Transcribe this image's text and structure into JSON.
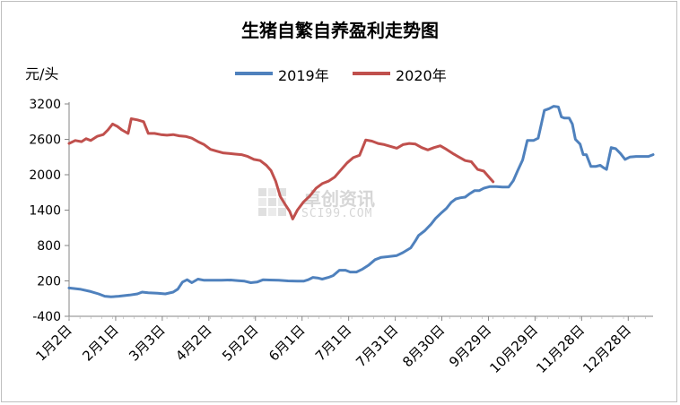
{
  "chart_data": {
    "type": "line",
    "title": "生猪自繁自养盈利走势图",
    "ylabel": "元/头",
    "xlabel": "",
    "ylim": [
      -400,
      3200
    ],
    "yticks": [
      -400,
      200,
      800,
      1400,
      2000,
      2600,
      3200
    ],
    "x_tick_labels": [
      "1月2日",
      "2月1日",
      "3月3日",
      "4月2日",
      "5月2日",
      "6月1日",
      "7月1日",
      "7月31日",
      "8月30日",
      "9月29日",
      "10月29日",
      "11月28日",
      "12月28日"
    ],
    "x_range_days": [
      1,
      363
    ],
    "legend_position": "top",
    "grid": false,
    "watermark": {
      "main": "卓创资讯",
      "sub": "SCI99.COM"
    },
    "series": [
      {
        "name": "2019年",
        "color": "#4f81bd",
        "points": [
          [
            1,
            80
          ],
          [
            8,
            60
          ],
          [
            15,
            20
          ],
          [
            20,
            -20
          ],
          [
            24,
            -60
          ],
          [
            28,
            -70
          ],
          [
            33,
            -60
          ],
          [
            40,
            -40
          ],
          [
            45,
            -20
          ],
          [
            48,
            10
          ],
          [
            52,
            0
          ],
          [
            58,
            -10
          ],
          [
            63,
            -20
          ],
          [
            68,
            10
          ],
          [
            71,
            60
          ],
          [
            74,
            180
          ],
          [
            77,
            220
          ],
          [
            80,
            170
          ],
          [
            84,
            230
          ],
          [
            88,
            210
          ],
          [
            93,
            210
          ],
          [
            99,
            210
          ],
          [
            105,
            215
          ],
          [
            110,
            205
          ],
          [
            114,
            195
          ],
          [
            118,
            170
          ],
          [
            122,
            180
          ],
          [
            126,
            220
          ],
          [
            130,
            215
          ],
          [
            136,
            210
          ],
          [
            142,
            200
          ],
          [
            148,
            195
          ],
          [
            152,
            195
          ],
          [
            155,
            220
          ],
          [
            158,
            260
          ],
          [
            161,
            250
          ],
          [
            164,
            230
          ],
          [
            168,
            260
          ],
          [
            171,
            290
          ],
          [
            175,
            380
          ],
          [
            179,
            380
          ],
          [
            182,
            350
          ],
          [
            186,
            350
          ],
          [
            190,
            400
          ],
          [
            194,
            470
          ],
          [
            198,
            560
          ],
          [
            202,
            600
          ],
          [
            206,
            610
          ],
          [
            212,
            630
          ],
          [
            216,
            680
          ],
          [
            221,
            760
          ],
          [
            224,
            880
          ],
          [
            226,
            970
          ],
          [
            230,
            1050
          ],
          [
            234,
            1160
          ],
          [
            237,
            1260
          ],
          [
            241,
            1360
          ],
          [
            244,
            1430
          ],
          [
            247,
            1530
          ],
          [
            250,
            1590
          ],
          [
            253,
            1610
          ],
          [
            256,
            1620
          ],
          [
            259,
            1680
          ],
          [
            262,
            1730
          ],
          [
            265,
            1730
          ],
          [
            268,
            1770
          ],
          [
            272,
            1800
          ],
          [
            276,
            1800
          ],
          [
            280,
            1790
          ],
          [
            284,
            1790
          ],
          [
            287,
            1900
          ],
          [
            290,
            2080
          ],
          [
            293,
            2250
          ],
          [
            296,
            2580
          ],
          [
            300,
            2580
          ],
          [
            303,
            2620
          ],
          [
            305,
            2850
          ],
          [
            307,
            3090
          ],
          [
            310,
            3120
          ],
          [
            313,
            3160
          ],
          [
            316,
            3150
          ],
          [
            318,
            2980
          ],
          [
            320,
            2960
          ],
          [
            323,
            2960
          ],
          [
            325,
            2860
          ],
          [
            327,
            2600
          ],
          [
            330,
            2520
          ],
          [
            332,
            2340
          ],
          [
            334,
            2340
          ],
          [
            337,
            2140
          ],
          [
            340,
            2140
          ],
          [
            343,
            2160
          ],
          [
            345,
            2120
          ],
          [
            347,
            2090
          ],
          [
            350,
            2460
          ],
          [
            353,
            2440
          ],
          [
            356,
            2360
          ],
          [
            359,
            2260
          ],
          [
            362,
            2300
          ],
          [
            366,
            2310
          ],
          [
            370,
            2310
          ],
          [
            374,
            2310
          ],
          [
            377,
            2340
          ]
        ]
      },
      {
        "name": "2020年",
        "color": "#c0504d",
        "points": [
          [
            1,
            2530
          ],
          [
            5,
            2580
          ],
          [
            9,
            2560
          ],
          [
            12,
            2610
          ],
          [
            15,
            2580
          ],
          [
            19,
            2650
          ],
          [
            23,
            2680
          ],
          [
            26,
            2760
          ],
          [
            29,
            2860
          ],
          [
            32,
            2820
          ],
          [
            35,
            2760
          ],
          [
            39,
            2700
          ],
          [
            41,
            2950
          ],
          [
            45,
            2930
          ],
          [
            49,
            2900
          ],
          [
            52,
            2700
          ],
          [
            56,
            2700
          ],
          [
            60,
            2680
          ],
          [
            64,
            2670
          ],
          [
            68,
            2680
          ],
          [
            72,
            2660
          ],
          [
            76,
            2650
          ],
          [
            80,
            2620
          ],
          [
            84,
            2560
          ],
          [
            88,
            2510
          ],
          [
            92,
            2430
          ],
          [
            96,
            2400
          ],
          [
            100,
            2370
          ],
          [
            104,
            2360
          ],
          [
            108,
            2350
          ],
          [
            112,
            2340
          ],
          [
            116,
            2310
          ],
          [
            120,
            2260
          ],
          [
            124,
            2240
          ],
          [
            128,
            2160
          ],
          [
            131,
            2070
          ],
          [
            134,
            1890
          ],
          [
            137,
            1630
          ],
          [
            140,
            1500
          ],
          [
            143,
            1380
          ],
          [
            145,
            1250
          ],
          [
            148,
            1400
          ],
          [
            152,
            1540
          ],
          [
            156,
            1640
          ],
          [
            160,
            1770
          ],
          [
            164,
            1850
          ],
          [
            168,
            1890
          ],
          [
            172,
            1960
          ],
          [
            176,
            2080
          ],
          [
            180,
            2200
          ],
          [
            184,
            2290
          ],
          [
            188,
            2330
          ],
          [
            192,
            2590
          ],
          [
            196,
            2570
          ],
          [
            200,
            2530
          ],
          [
            204,
            2510
          ],
          [
            208,
            2480
          ],
          [
            212,
            2450
          ],
          [
            216,
            2510
          ],
          [
            220,
            2530
          ],
          [
            224,
            2520
          ],
          [
            228,
            2460
          ],
          [
            232,
            2420
          ],
          [
            236,
            2460
          ],
          [
            240,
            2490
          ],
          [
            244,
            2430
          ],
          [
            248,
            2360
          ],
          [
            252,
            2300
          ],
          [
            256,
            2240
          ],
          [
            260,
            2220
          ],
          [
            264,
            2090
          ],
          [
            268,
            2060
          ],
          [
            271,
            1970
          ],
          [
            274,
            1880
          ]
        ]
      }
    ]
  }
}
